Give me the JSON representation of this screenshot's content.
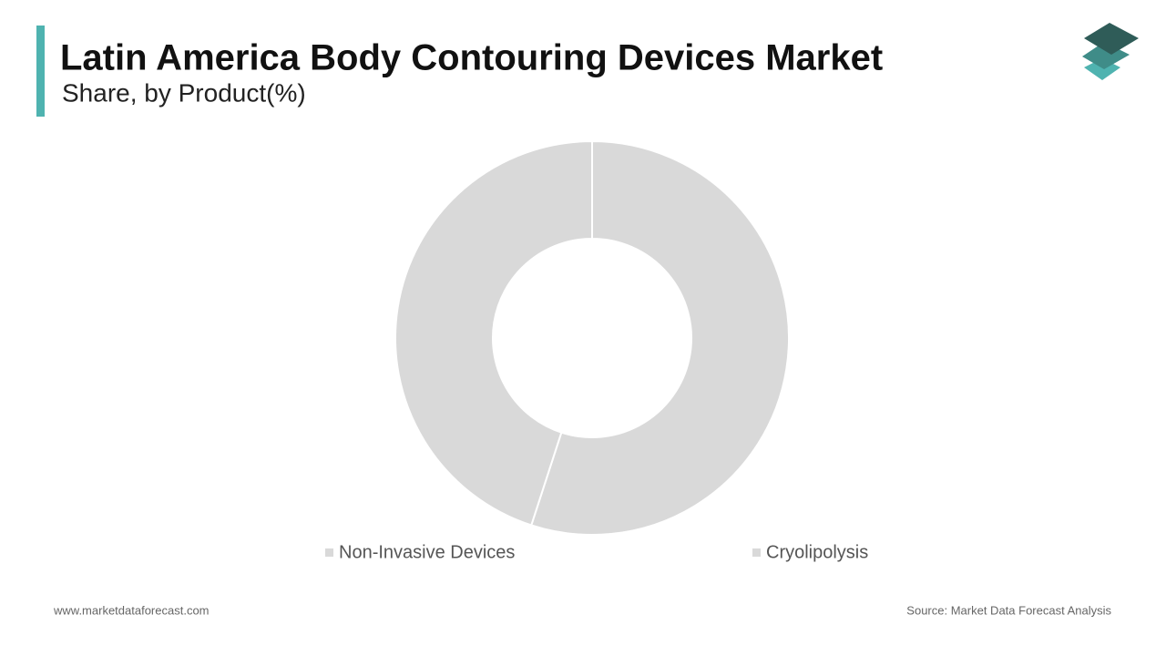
{
  "chart_data": {
    "type": "donut",
    "title": "Latin America Body Contouring Devices Market",
    "subtitle": "Share, by Product(%)",
    "categories": [
      "Non-Invasive Devices",
      "Cryolipolysis"
    ],
    "values": [
      55,
      45
    ],
    "colors": [
      "#d9d9d9",
      "#d9d9d9"
    ],
    "legend": "bottom"
  },
  "footer": {
    "website": "www.marketdataforecast.com",
    "source": "Source: Market Data Forecast Analysis"
  }
}
